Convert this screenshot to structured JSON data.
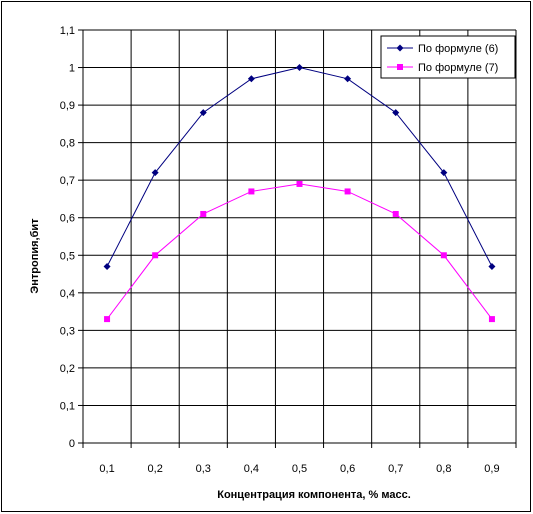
{
  "chart_data": {
    "type": "line",
    "categories": [
      "0,1",
      "0,2",
      "0,3",
      "0,4",
      "0,5",
      "0,6",
      "0,7",
      "0,8",
      "0,9"
    ],
    "series": [
      {
        "name": "По формуле (6)",
        "color": "#000080",
        "marker": "diamond",
        "values": [
          0.47,
          0.72,
          0.88,
          0.97,
          1.0,
          0.97,
          0.88,
          0.72,
          0.47
        ]
      },
      {
        "name": "По формуле (7)",
        "color": "#ff00ff",
        "marker": "square",
        "values": [
          0.33,
          0.5,
          0.61,
          0.67,
          0.69,
          0.67,
          0.61,
          0.5,
          0.33
        ]
      }
    ],
    "xlabel": "Концентрация компонента, % масс.",
    "ylabel": "Энтропия,бит",
    "ylim": [
      0,
      1.1
    ],
    "yticks": [
      0,
      0.1,
      0.2,
      0.3,
      0.4,
      0.5,
      0.6,
      0.7,
      0.8,
      0.9,
      1,
      1.1
    ],
    "ytick_labels": [
      "0",
      "0,1",
      "0,2",
      "0,3",
      "0,4",
      "0,5",
      "0,6",
      "0,7",
      "0,8",
      "0,9",
      "1",
      "1,1"
    ],
    "grid": true,
    "legend_position": "top-right"
  }
}
